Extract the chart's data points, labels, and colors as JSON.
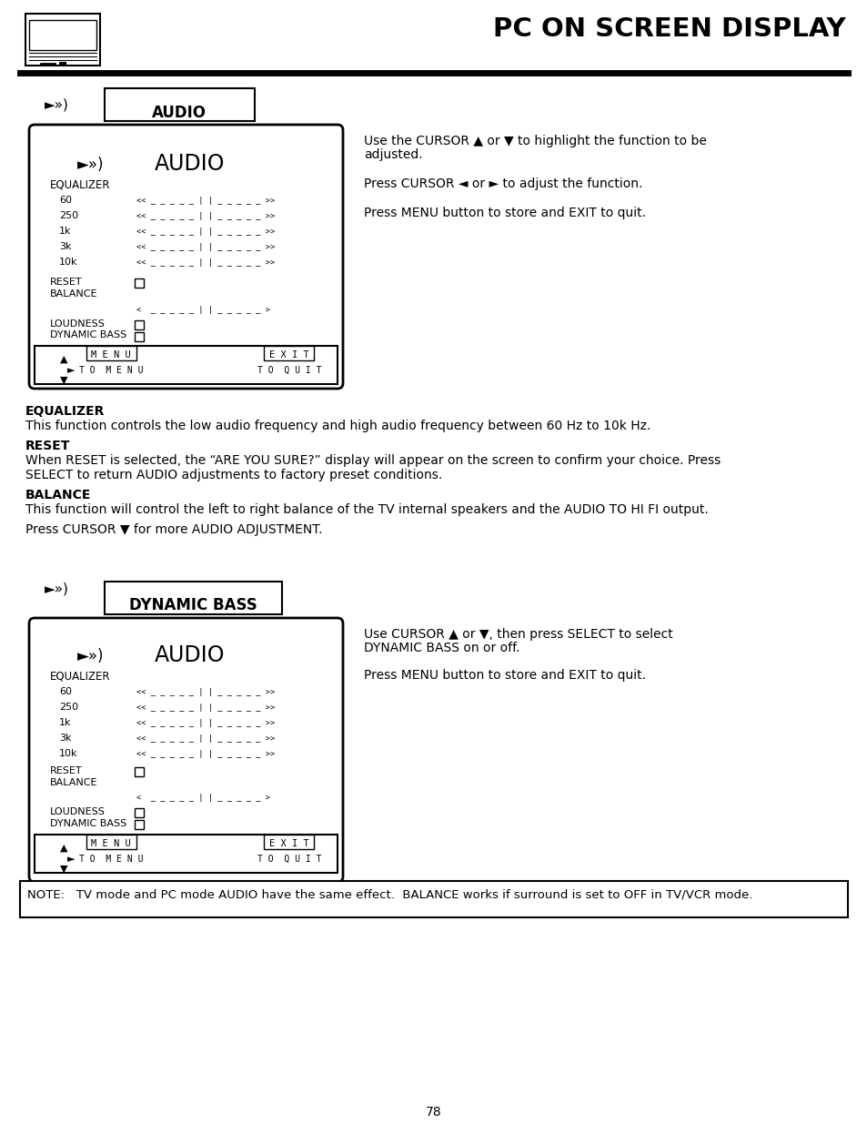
{
  "title": "PC ON SCREEN DISPLAY",
  "page_number": "78",
  "bg_color": "#ffffff",
  "text_color": "#000000",
  "section1_label": "AUDIO",
  "section2_label": "DYNAMIC BASS",
  "screen_title": "AUDIO",
  "right_text1_line1": "Use the CURSOR ▲ or ▼ to highlight the function to be",
  "right_text1_line2": "adjusted.",
  "right_text1_line3": "Press CURSOR ◄ or ► to adjust the function.",
  "right_text1_line4": "Press MENU button to store and EXIT to quit.",
  "right_text2_line1": "Use CURSOR ▲ or ▼, then press SELECT to select",
  "right_text2_line2": "DYNAMIC BASS on or off.",
  "right_text2_line3": "Press MENU button to store and EXIT to quit.",
  "bold_section1": "EQUALIZER",
  "bold_section2": "RESET",
  "bold_section3": "BALANCE",
  "body_text1": "This function controls the low audio frequency and high audio frequency between 60 Hz to 10k Hz.",
  "body_text2a": "When RESET is selected, the “ARE YOU SURE?” display will appear on the screen to confirm your choice. Press",
  "body_text2b": "SELECT to return AUDIO adjustments to factory preset conditions.",
  "body_text3": "This function will control the left to right balance of the TV internal speakers and the AUDIO TO HI FI output.",
  "body_text4": "Press CURSOR ▼ for more AUDIO ADJUSTMENT.",
  "note_text": "NOTE:   TV mode and PC mode AUDIO have the same effect.  BALANCE works if surround is set to OFF in TV/VCR mode."
}
